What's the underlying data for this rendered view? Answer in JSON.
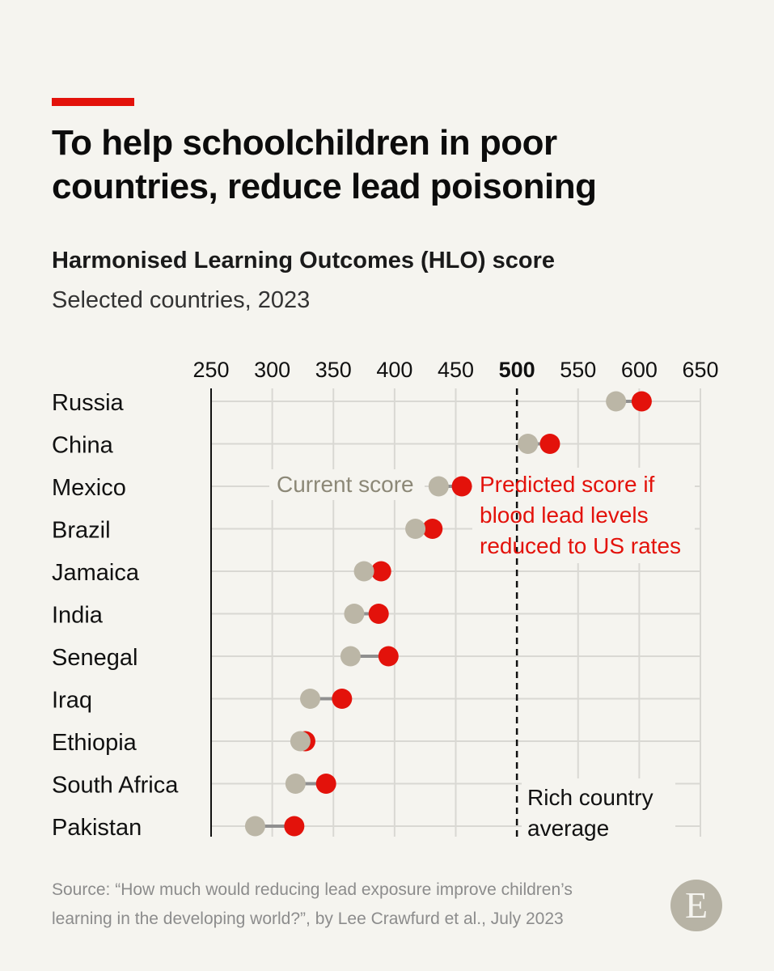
{
  "header": {
    "title_line1": "To help schoolchildren in poor",
    "title_line2": "countries, reduce lead poisoning",
    "subtitle": "Harmonised Learning Outcomes (HLO) score",
    "subsubtitle": "Selected countries, 2023"
  },
  "footer": {
    "source_line1": "Source: “How much would reducing lead exposure improve children’s",
    "source_line2": "learning in the developing world?”, by Lee Crawfurd et al., July 2023",
    "logo": "E"
  },
  "colors": {
    "current": "#bbb6a6",
    "predicted": "#e3120b",
    "connector": "#8f8f8f",
    "grid": "#d9d8d3",
    "background": "#f5f4ef"
  },
  "chart_data": {
    "type": "dot",
    "x_ticks": [
      250,
      300,
      350,
      400,
      450,
      500,
      550,
      600,
      650
    ],
    "xlim": [
      250,
      650
    ],
    "grid": true,
    "categories": [
      "Russia",
      "China",
      "Mexico",
      "Brazil",
      "Jamaica",
      "India",
      "Senegal",
      "Iraq",
      "Ethiopia",
      "South Africa",
      "Pakistan"
    ],
    "series": [
      {
        "name": "Current score",
        "values": [
          581,
          509,
          436,
          417,
          375,
          367,
          364,
          331,
          323,
          319,
          286
        ]
      },
      {
        "name": "Predicted score if blood lead levels reduced to US rates",
        "values": [
          602,
          527,
          455,
          431,
          389,
          387,
          395,
          357,
          327,
          344,
          318
        ]
      }
    ],
    "reference_line": {
      "value": 500,
      "label_line1": "Rich country",
      "label_line2": "average"
    },
    "annotations": {
      "current_label": "Current score",
      "predicted_label_line1": "Predicted score if",
      "predicted_label_line2": "blood lead levels",
      "predicted_label_line3": "reduced to US rates"
    }
  }
}
